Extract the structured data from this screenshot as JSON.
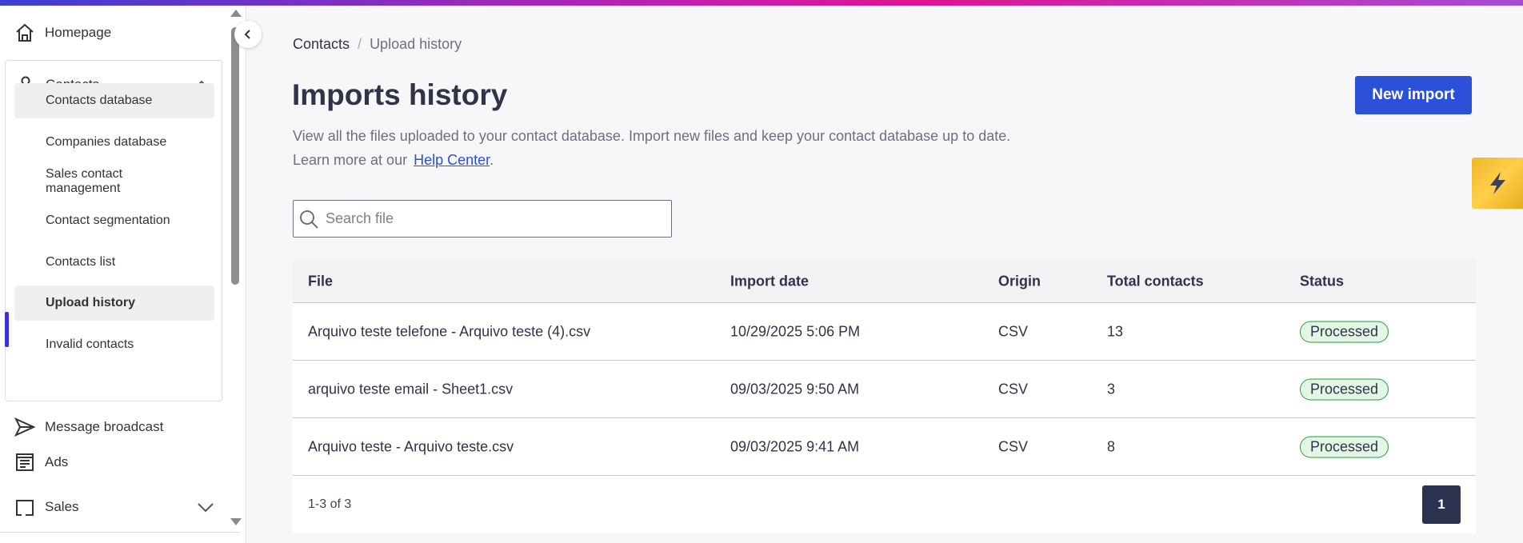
{
  "colors": {
    "accent": "#2c50d8",
    "active_indicator": "#3b2fe0",
    "status_processed": "#2a9a3a",
    "bolt": "#f0b628"
  },
  "sidebar": {
    "homepage": {
      "label": "Homepage",
      "icon": "home-icon"
    },
    "contacts": {
      "label": "Contacts",
      "icon": "user-icon",
      "expanded": true,
      "items": [
        {
          "label": "Contacts database"
        },
        {
          "label": "Companies database"
        },
        {
          "label": "Sales contact management"
        },
        {
          "label": "Contact segmentation"
        },
        {
          "label": "Contacts list"
        },
        {
          "label": "Upload history",
          "active": true
        },
        {
          "label": "Invalid contacts"
        }
      ]
    },
    "message_broadcast": {
      "label": "Message broadcast",
      "icon": "send-icon"
    },
    "ads": {
      "label": "Ads",
      "icon": "ads-icon"
    },
    "sales": {
      "label": "Sales",
      "icon": "sales-icon"
    }
  },
  "breadcrumb": {
    "parent": "Contacts",
    "separator": "/",
    "current": "Upload history"
  },
  "header": {
    "title": "Imports history",
    "description": "View all the files uploaded to your contact database. Import new files and keep your contact database up to date.",
    "learn_more": "Learn more at our",
    "help_link": "Help Center",
    "help_suffix": ".",
    "new_import": "New import"
  },
  "search": {
    "placeholder": "Search file",
    "value": ""
  },
  "table": {
    "columns": [
      "File",
      "Import date",
      "Origin",
      "Total contacts",
      "Status"
    ],
    "rows": [
      {
        "file": "Arquivo teste telefone - Arquivo teste (4).csv",
        "date": "10/29/2025 5:06 PM",
        "origin": "CSV",
        "total": "13",
        "status": "Processed"
      },
      {
        "file": "arquivo teste email - Sheet1.csv",
        "date": "09/03/2025 9:50 AM",
        "origin": "CSV",
        "total": "3",
        "status": "Processed"
      },
      {
        "file": "Arquivo teste - Arquivo teste.csv",
        "date": "09/03/2025 9:41 AM",
        "origin": "CSV",
        "total": "8",
        "status": "Processed"
      }
    ],
    "range": "1-3 of 3",
    "page": "1"
  }
}
